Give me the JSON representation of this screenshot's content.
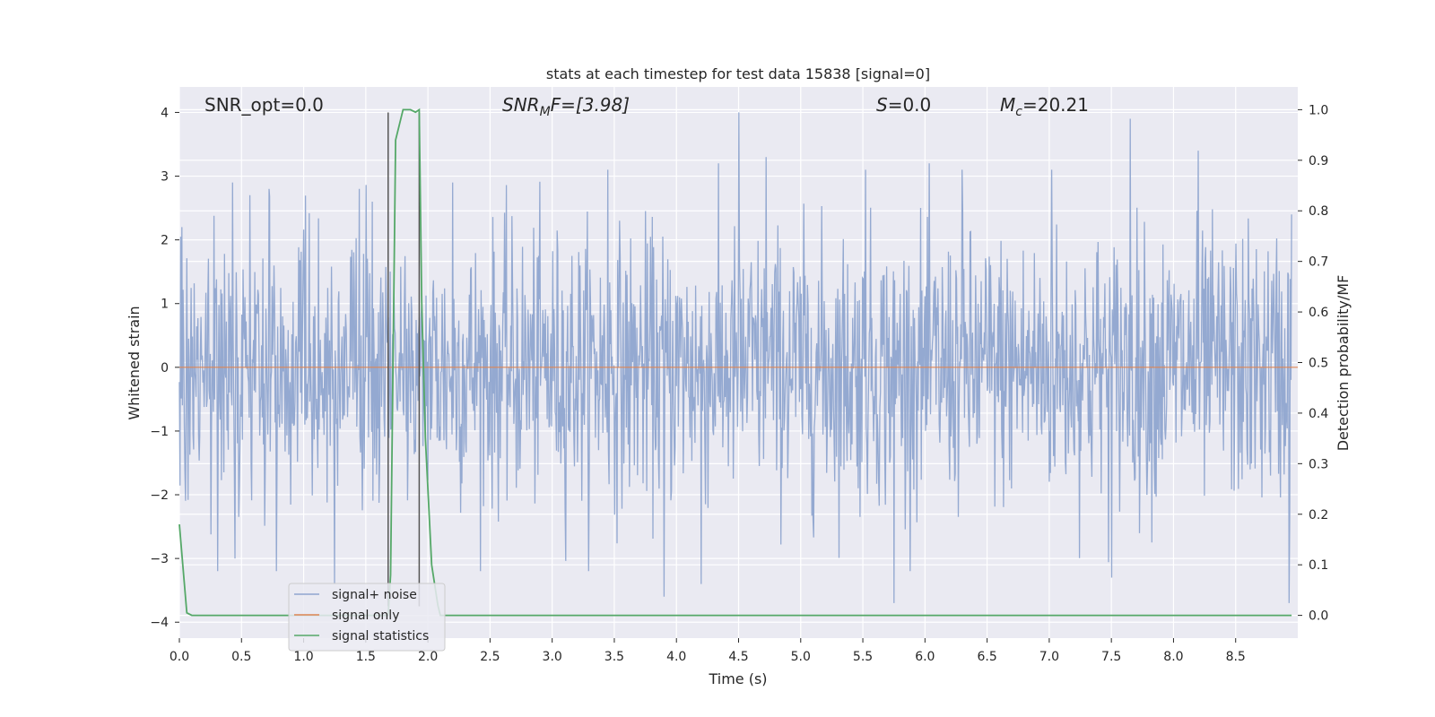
{
  "chart_data": {
    "type": "line",
    "title": "stats at each timestep for test data 15838 [signal=0]",
    "xlabel": "Time (s)",
    "ylabel": "Whitened strain",
    "ylabel_right": "Detection probability/MF",
    "xlim": [
      0.0,
      9.0
    ],
    "ylim": [
      -4.25,
      4.4
    ],
    "ylim_right": [
      -0.045,
      1.045
    ],
    "x_ticks": [
      "0.0",
      "0.5",
      "1.0",
      "1.5",
      "2.0",
      "2.5",
      "3.0",
      "3.5",
      "4.0",
      "4.5",
      "5.0",
      "5.5",
      "6.0",
      "6.5",
      "7.0",
      "7.5",
      "8.0",
      "8.5"
    ],
    "y_ticks": [
      "4",
      "3",
      "2",
      "1",
      "0",
      "−1",
      "−2",
      "−3",
      "−4"
    ],
    "y_ticks_right": [
      "1.0",
      "0.9",
      "0.8",
      "0.7",
      "0.6",
      "0.5",
      "0.4",
      "0.3",
      "0.2",
      "0.1",
      "0.0"
    ],
    "grid": true,
    "legend_position": "lower-left",
    "annotations": {
      "snr_opt": "SNR_opt=0.0",
      "snr_mf_main": "SNR",
      "snr_mf_sub": "M",
      "snr_mf_rest": "F=[3.98]",
      "s_main": "S",
      "s_rest": "=0.0",
      "mc_main": "M",
      "mc_sub": "c",
      "mc_rest": "=20.21"
    },
    "vertical_markers_x": [
      1.68,
      1.93
    ],
    "series": [
      {
        "name": "signal+ noise",
        "color": "#8fa5cf",
        "description_values": "dense whitened noise, approx. ±1 core with peaks up to about ±4",
        "sample_peaks": [
          [
            0.02,
            2.2
          ],
          [
            0.43,
            2.9
          ],
          [
            0.72,
            2.8
          ],
          [
            1.45,
            2.8
          ],
          [
            1.55,
            2.6
          ],
          [
            2.2,
            2.9
          ],
          [
            3.45,
            3.1
          ],
          [
            4.5,
            4.0
          ],
          [
            4.72,
            3.3
          ],
          [
            5.52,
            3.1
          ],
          [
            6.3,
            3.1
          ],
          [
            7.02,
            3.1
          ],
          [
            7.65,
            3.9
          ],
          [
            8.2,
            3.4
          ],
          [
            8.95,
            2.4
          ],
          [
            0.45,
            -3.0
          ],
          [
            0.78,
            -3.2
          ],
          [
            1.25,
            -3.4
          ],
          [
            3.9,
            -3.6
          ],
          [
            4.2,
            -3.4
          ],
          [
            5.75,
            -3.7
          ],
          [
            7.5,
            -3.3
          ],
          [
            8.93,
            -3.7
          ]
        ]
      },
      {
        "name": "signal only",
        "color": "#dd8452",
        "x": [
          0.0,
          9.0
        ],
        "y": [
          0.0,
          0.0
        ]
      },
      {
        "name": "signal statistics",
        "color": "#55a868",
        "axis": "right",
        "x": [
          0.0,
          0.06,
          0.1,
          0.15,
          1.55,
          1.62,
          1.68,
          1.7,
          1.74,
          1.8,
          1.86,
          1.9,
          1.93,
          1.95,
          1.98,
          2.03,
          2.08,
          2.1,
          8.95
        ],
        "y": [
          0.18,
          0.005,
          0.0,
          0.0,
          0.0,
          0.0,
          0.0,
          0.08,
          0.94,
          1.0,
          1.0,
          0.995,
          1.0,
          0.62,
          0.35,
          0.1,
          0.02,
          0.0,
          0.0
        ]
      }
    ]
  }
}
